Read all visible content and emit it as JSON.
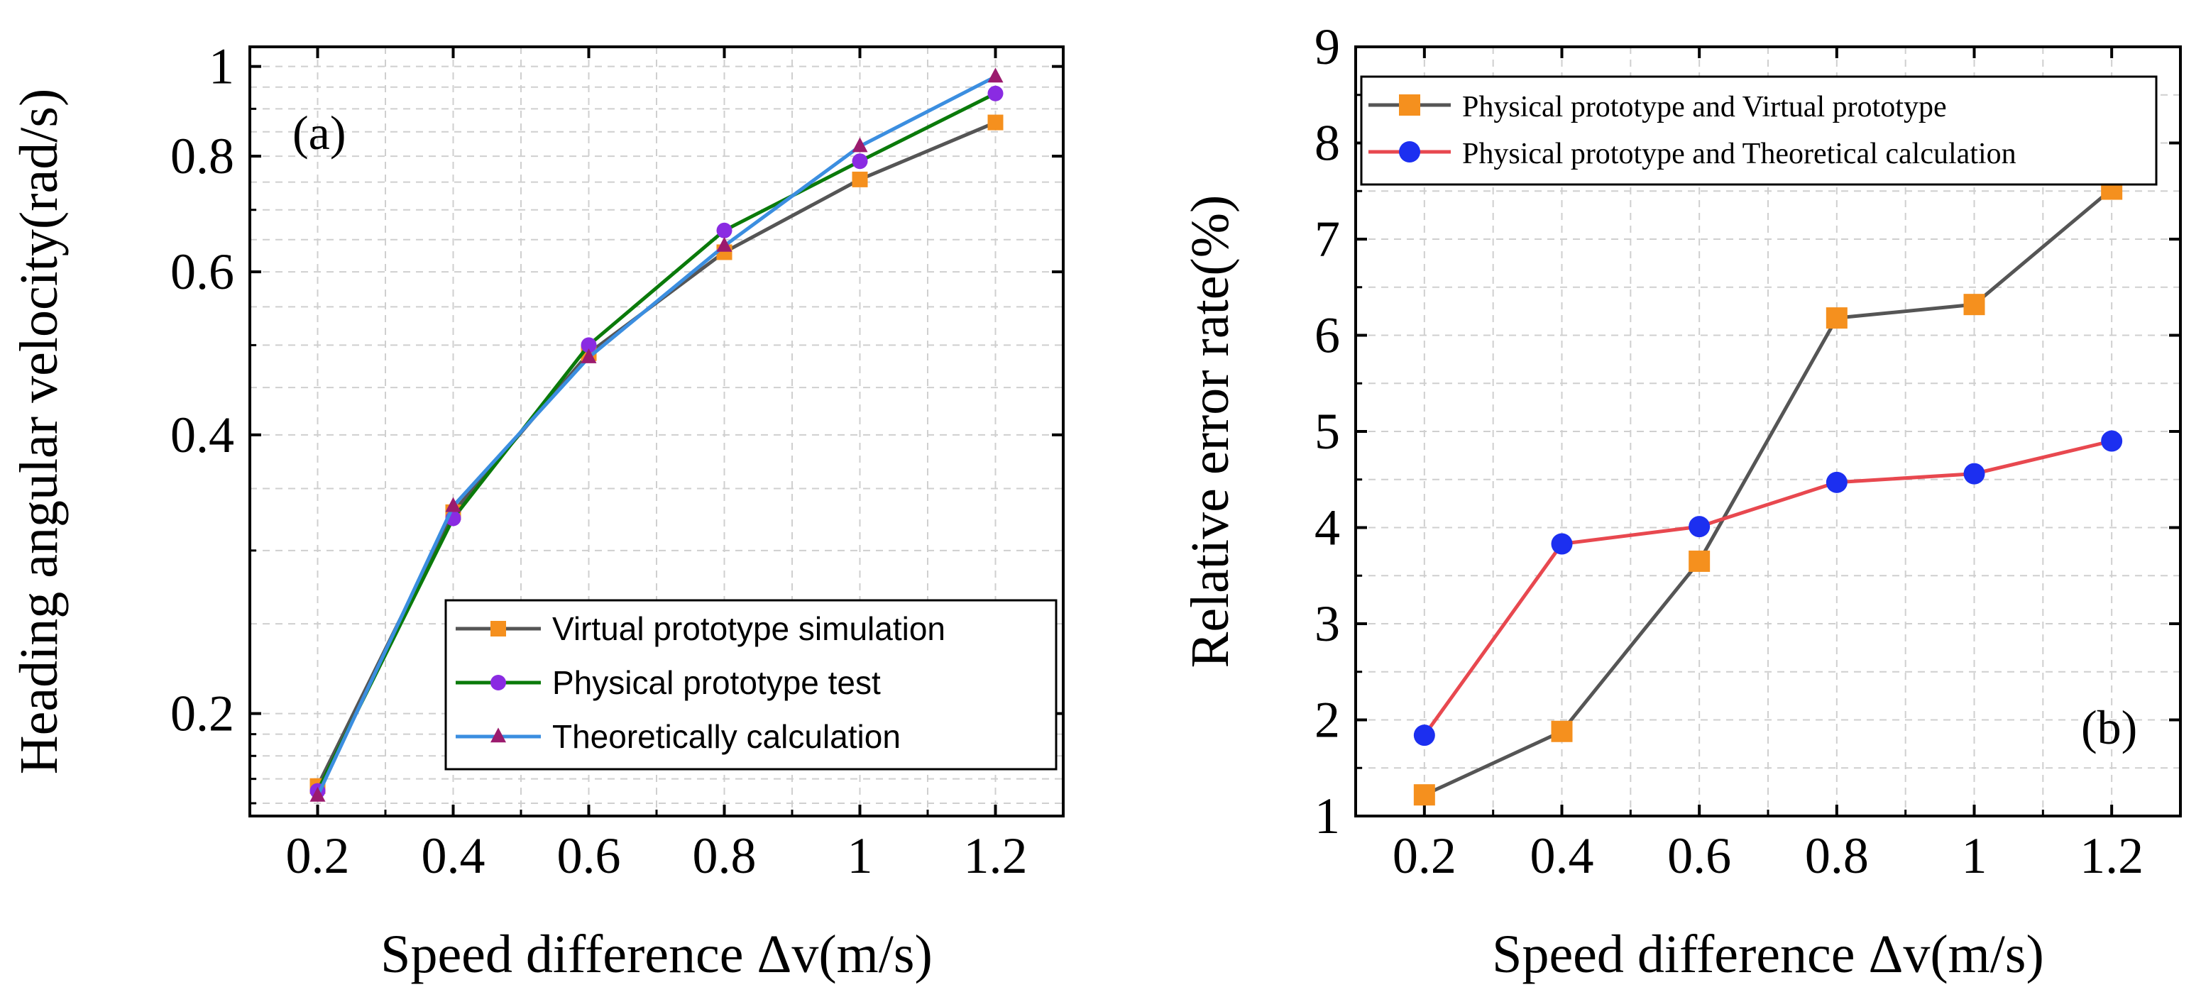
{
  "chart_data": [
    {
      "panel": "(a)",
      "type": "line",
      "y_scale": "log",
      "title": "",
      "xlabel": "Speed difference Δv(m/s)",
      "ylabel": "Heading angular velocity(rad/s)",
      "x_ticks": [
        "0.2",
        "0.4",
        "0.6",
        "0.8",
        "1",
        "1.2"
      ],
      "y_ticks": [
        "0.2",
        "0.4",
        "0.6",
        "0.8",
        "1"
      ],
      "x": [
        0.2,
        0.4,
        0.6,
        0.8,
        1.0,
        1.2
      ],
      "xlim": [
        0.1,
        1.3
      ],
      "ylim": [
        0.155,
        1.05
      ],
      "grid": true,
      "legend_position": "bottom-right",
      "series": [
        {
          "name": "Virtual prototype simulation",
          "values": [
            0.167,
            0.33,
            0.49,
            0.63,
            0.755,
            0.87
          ],
          "color": "#555555",
          "marker": "square",
          "marker_color": "#f5901e"
        },
        {
          "name": "Physical prototype test",
          "values": [
            0.165,
            0.325,
            0.5,
            0.665,
            0.79,
            0.935
          ],
          "color": "#0a7a0a",
          "marker": "circle",
          "marker_color": "#8a2be2"
        },
        {
          "name": "Theoretically  calculation",
          "values": [
            0.163,
            0.335,
            0.485,
            0.64,
            0.82,
            0.975
          ],
          "color": "#3b8ee0",
          "marker": "triangle",
          "marker_color": "#9b1b6e"
        }
      ]
    },
    {
      "panel": "(b)",
      "type": "line",
      "title": "",
      "xlabel": "Speed difference Δv(m/s)",
      "ylabel": "Relative error rate(%)",
      "x_ticks": [
        "0.2",
        "0.4",
        "0.6",
        "0.8",
        "1",
        "1.2"
      ],
      "y_ticks": [
        "1",
        "2",
        "3",
        "4",
        "5",
        "6",
        "7",
        "8",
        "9"
      ],
      "x": [
        0.2,
        0.4,
        0.6,
        0.8,
        1.0,
        1.2
      ],
      "xlim": [
        0.1,
        1.3
      ],
      "ylim": [
        1,
        9
      ],
      "grid": true,
      "legend_position": "top",
      "series": [
        {
          "name": "Physical prototype and Virtual prototype",
          "values": [
            1.22,
            1.88,
            3.65,
            6.18,
            6.32,
            7.52
          ],
          "color": "#555555",
          "marker": "square",
          "marker_color": "#f5901e"
        },
        {
          "name": "Physical prototype and Theoretical calculation",
          "values": [
            1.84,
            3.83,
            4.01,
            4.47,
            4.56,
            4.9
          ],
          "color": "#e8484f",
          "marker": "circle",
          "marker_color": "#1c2ff0"
        }
      ]
    }
  ]
}
